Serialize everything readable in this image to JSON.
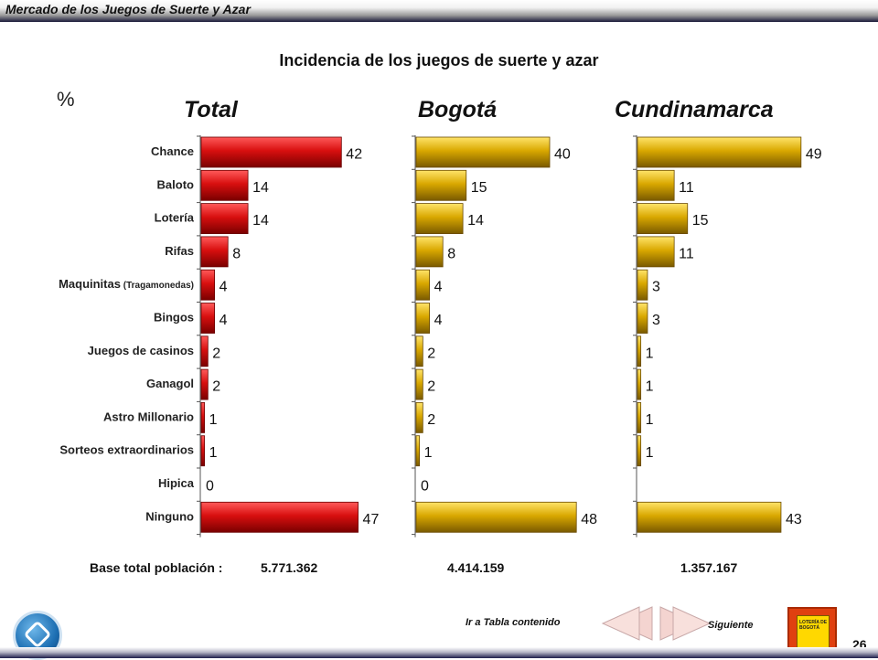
{
  "header": {
    "title": "Mercado de los Juegos de Suerte y Azar"
  },
  "chart_data": {
    "type": "bar",
    "orientation": "horizontal",
    "title": "Incidencia de los juegos de suerte y azar",
    "unit": "%",
    "categories": [
      "Chance",
      "Baloto",
      "Lotería",
      "Rifas",
      "Maquinitas",
      "Bingos",
      "Juegos de casinos",
      "Ganagol",
      "Astro Millonario",
      "Sorteos extraordinarios",
      "Hipica",
      "Ninguno"
    ],
    "category_notes": {
      "Maquinitas": "(Tragamonedas)"
    },
    "series": [
      {
        "name": "Total",
        "color": "#d81010",
        "values": [
          42,
          14,
          14,
          8,
          4,
          4,
          2,
          2,
          1,
          1,
          0,
          47
        ]
      },
      {
        "name": "Bogotá",
        "color": "#e0b000",
        "values": [
          40,
          15,
          14,
          8,
          4,
          4,
          2,
          2,
          2,
          1,
          0,
          48
        ]
      },
      {
        "name": "Cundinamarca",
        "color": "#e0b000",
        "values": [
          49,
          11,
          15,
          11,
          3,
          3,
          1,
          1,
          1,
          1,
          null,
          43
        ]
      }
    ],
    "xlim": [
      0,
      50
    ],
    "grid": false
  },
  "base": {
    "label": "Base  total  población  :",
    "total": "5.771.362",
    "bogota": "4.414.159",
    "cundinamarca": "1.357.167"
  },
  "nav": {
    "toc_label": "Ir a Tabla contenido",
    "next_label": "Siguiente"
  },
  "logo_right_text": "LOTERÍA DE BOGOTÁ",
  "page_number": "26"
}
